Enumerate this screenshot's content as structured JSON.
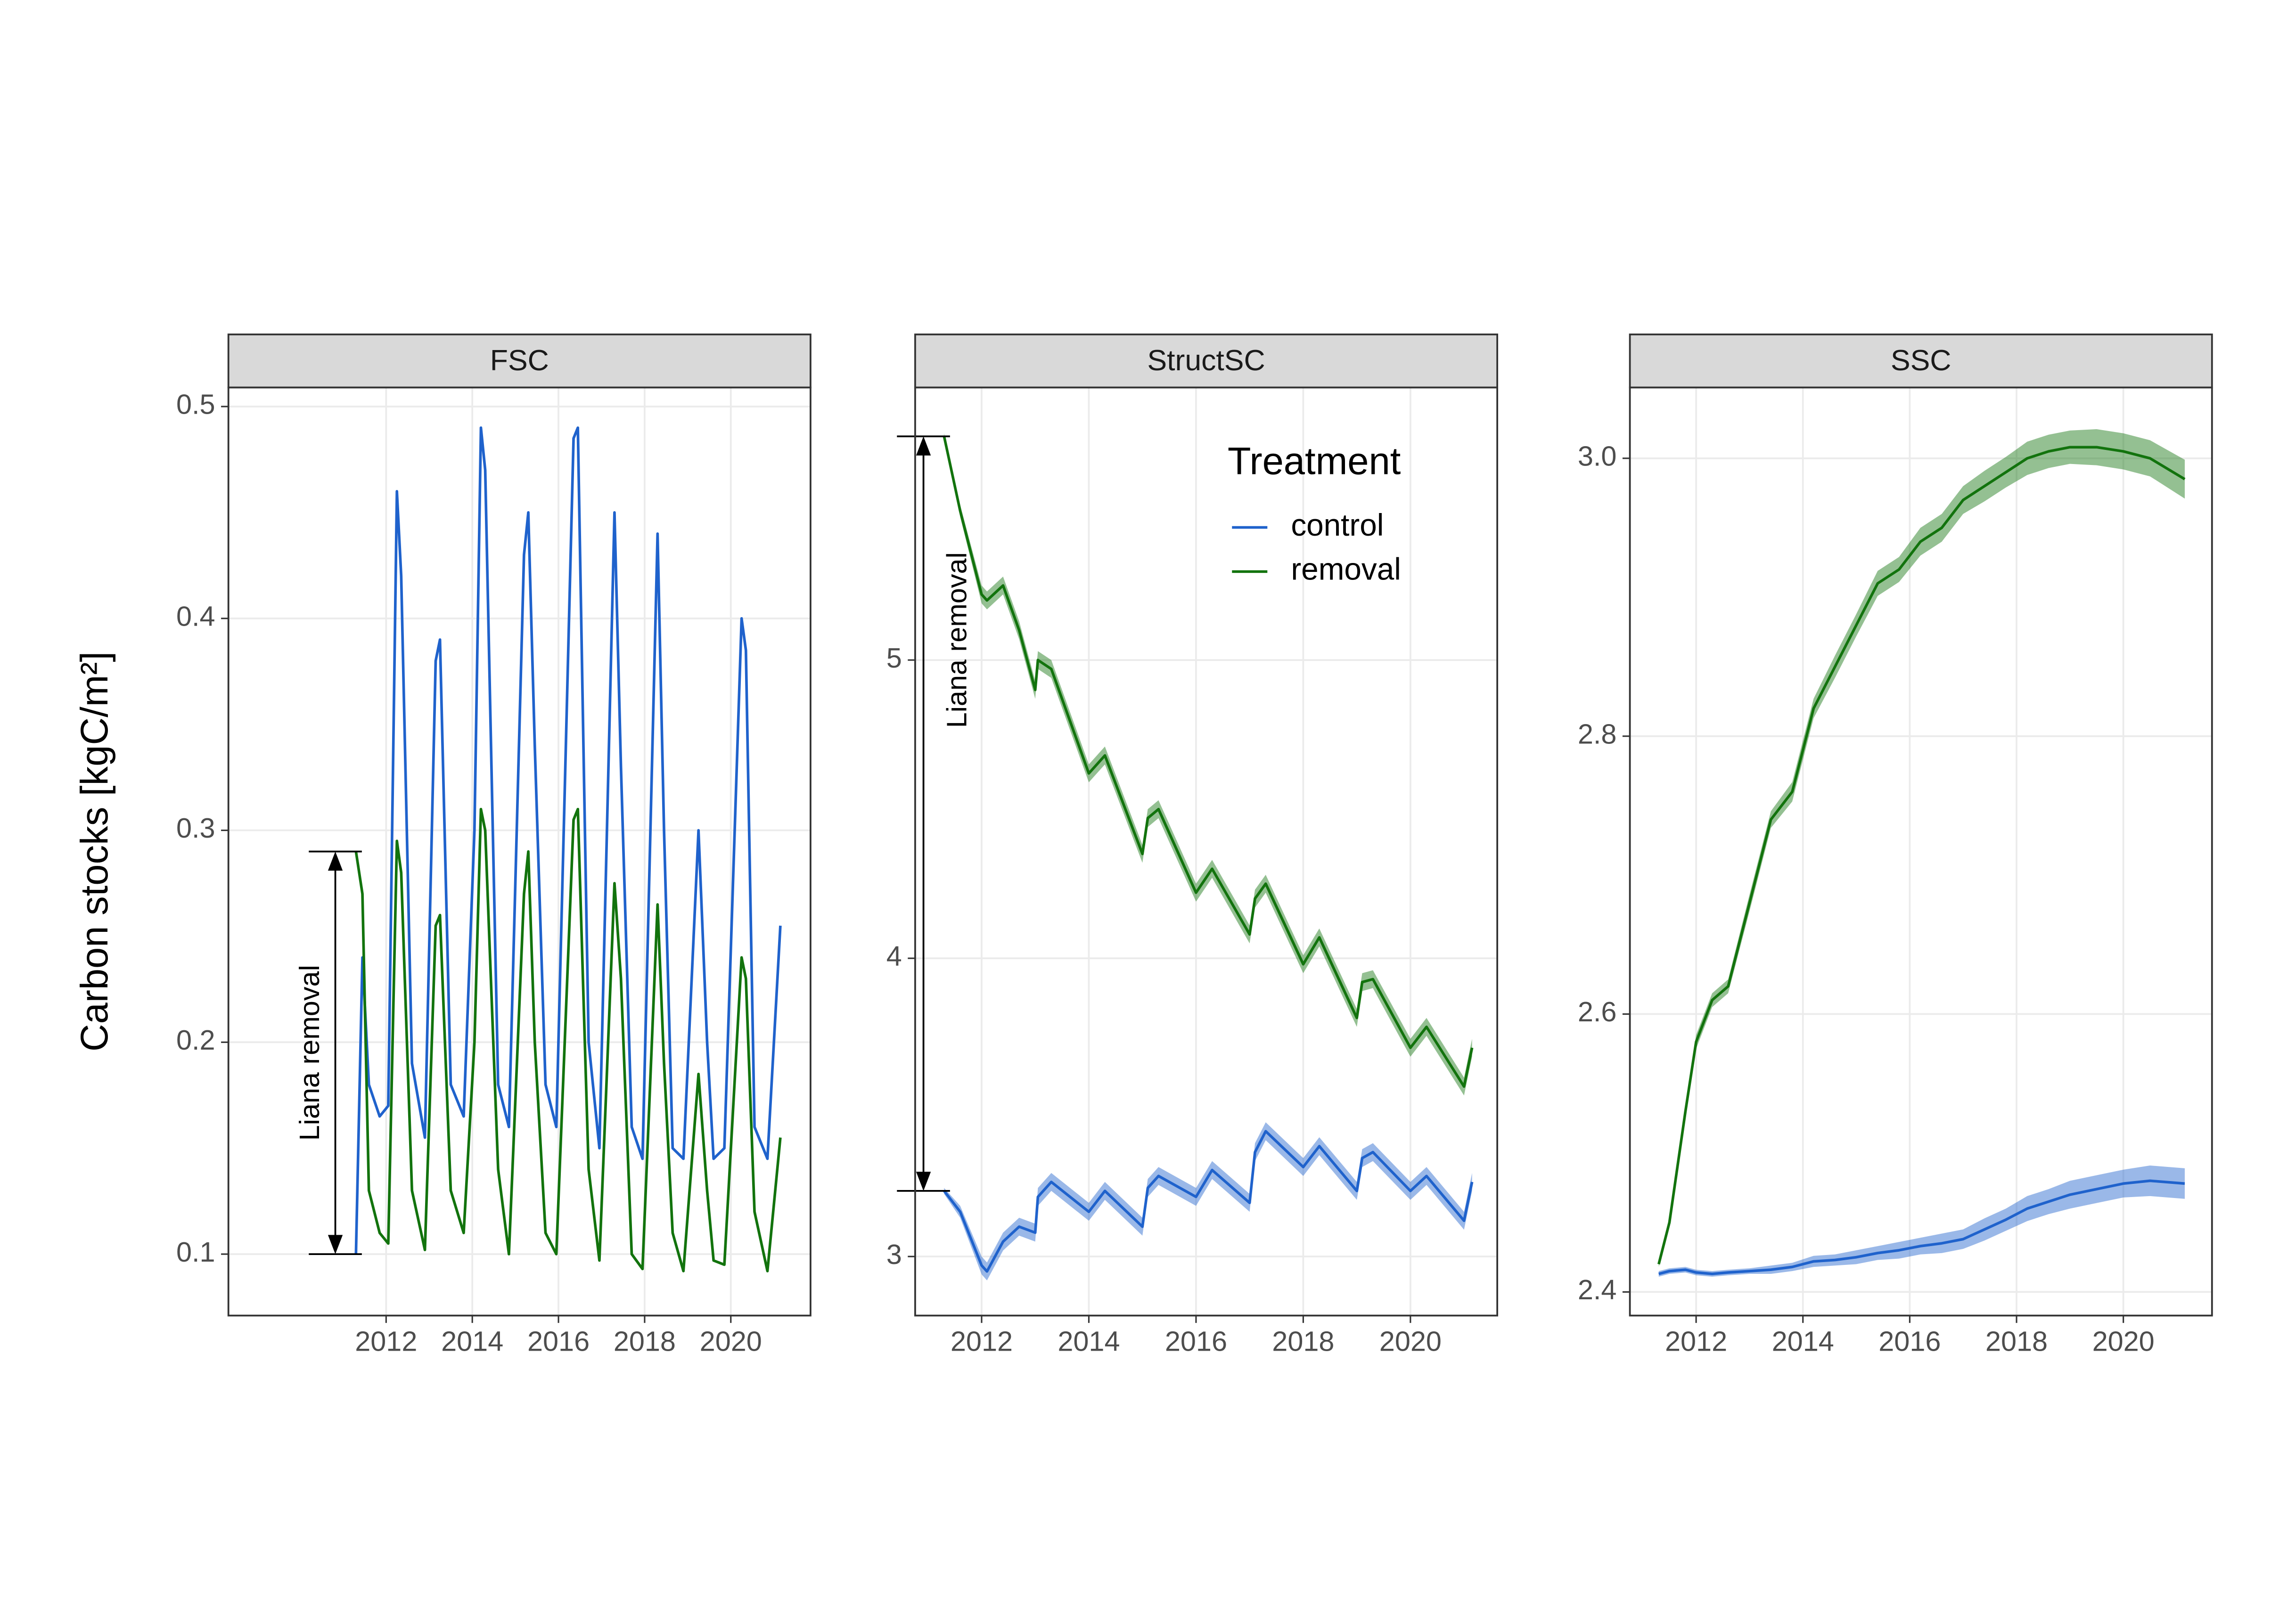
{
  "chart_data": [
    {
      "type": "line",
      "title": "FSC",
      "y_label": "Carbon stocks [kgC/m²]",
      "annotation": "Liana removal",
      "xlim": [
        2008.34,
        2021.85
      ],
      "xticks": [
        2012,
        2014,
        2016,
        2018,
        2020
      ],
      "ylim": [
        0.071,
        0.509
      ],
      "yticks": [
        0.1,
        0.2,
        0.3,
        0.4,
        0.5
      ],
      "grid": true,
      "x": [
        2011.3,
        2011.45,
        2011.6,
        2011.85,
        2012.05,
        2012.25,
        2012.35,
        2012.6,
        2012.9,
        2013.15,
        2013.25,
        2013.5,
        2013.8,
        2014.05,
        2014.2,
        2014.3,
        2014.6,
        2014.85,
        2015.2,
        2015.3,
        2015.45,
        2015.7,
        2015.95,
        2016.35,
        2016.45,
        2016.7,
        2016.95,
        2017.3,
        2017.45,
        2017.7,
        2017.95,
        2018.3,
        2018.45,
        2018.65,
        2018.9,
        2019.25,
        2019.45,
        2019.6,
        2019.85,
        2020.25,
        2020.35,
        2020.55,
        2020.85,
        2021.15
      ],
      "series": [
        {
          "color": "#1f62cc",
          "values": [
            0.1,
            0.24,
            0.18,
            0.165,
            0.17,
            0.46,
            0.42,
            0.19,
            0.155,
            0.38,
            0.39,
            0.18,
            0.165,
            0.3,
            0.49,
            0.47,
            0.18,
            0.16,
            0.43,
            0.45,
            0.34,
            0.18,
            0.16,
            0.485,
            0.49,
            0.2,
            0.15,
            0.45,
            0.33,
            0.16,
            0.145,
            0.44,
            0.3,
            0.15,
            0.145,
            0.3,
            0.2,
            0.145,
            0.15,
            0.4,
            0.385,
            0.16,
            0.145,
            0.255
          ]
        },
        {
          "color": "#12730d",
          "values": [
            0.29,
            0.27,
            0.13,
            0.11,
            0.105,
            0.295,
            0.28,
            0.13,
            0.102,
            0.255,
            0.26,
            0.13,
            0.11,
            0.2,
            0.31,
            0.3,
            0.14,
            0.1,
            0.27,
            0.29,
            0.2,
            0.11,
            0.1,
            0.305,
            0.31,
            0.14,
            0.097,
            0.275,
            0.23,
            0.1,
            0.093,
            0.265,
            0.19,
            0.11,
            0.092,
            0.185,
            0.13,
            0.097,
            0.095,
            0.24,
            0.23,
            0.12,
            0.092,
            0.155
          ]
        }
      ]
    },
    {
      "type": "line",
      "title": "StructSC",
      "annotation": "Liana removal",
      "legend_title": "Treatment",
      "legend": "top-right",
      "xlim": [
        2010.76,
        2021.62
      ],
      "xticks": [
        2012,
        2014,
        2016,
        2018,
        2020
      ],
      "ylim": [
        2.802,
        5.914
      ],
      "yticks": [
        3,
        4,
        5
      ],
      "grid": true,
      "x": [
        2011.3,
        2011.6,
        2012.0,
        2012.1,
        2012.4,
        2012.7,
        2013.0,
        2013.05,
        2013.3,
        2014.0,
        2014.3,
        2015.0,
        2015.1,
        2015.3,
        2016.0,
        2016.3,
        2017.0,
        2017.1,
        2017.3,
        2018.0,
        2018.3,
        2019.0,
        2019.1,
        2019.3,
        2020.0,
        2020.3,
        2021.0,
        2021.15
      ],
      "series": [
        {
          "name": "control",
          "color": "#1f62cc",
          "values": [
            3.22,
            3.15,
            2.97,
            2.95,
            3.05,
            3.1,
            3.08,
            3.2,
            3.25,
            3.15,
            3.22,
            3.1,
            3.23,
            3.27,
            3.2,
            3.29,
            3.18,
            3.35,
            3.42,
            3.3,
            3.37,
            3.22,
            3.33,
            3.35,
            3.22,
            3.27,
            3.12,
            3.25
          ],
          "ci": [
            0.01,
            0.02,
            0.03,
            0.03,
            0.03,
            0.03,
            0.03,
            0.03,
            0.03,
            0.03,
            0.03,
            0.03,
            0.03,
            0.03,
            0.03,
            0.03,
            0.03,
            0.03,
            0.03,
            0.03,
            0.03,
            0.03,
            0.03,
            0.03,
            0.03,
            0.03,
            0.03,
            0.03
          ]
        },
        {
          "name": "removal",
          "color": "#12730d",
          "values": [
            5.75,
            5.5,
            5.22,
            5.2,
            5.25,
            5.1,
            4.9,
            5.0,
            4.97,
            4.62,
            4.68,
            4.35,
            4.47,
            4.5,
            4.22,
            4.3,
            4.08,
            4.2,
            4.25,
            3.98,
            4.07,
            3.8,
            3.92,
            3.93,
            3.7,
            3.77,
            3.57,
            3.7
          ],
          "ci": [
            0.01,
            0.02,
            0.03,
            0.03,
            0.03,
            0.03,
            0.03,
            0.03,
            0.03,
            0.03,
            0.03,
            0.03,
            0.03,
            0.03,
            0.03,
            0.03,
            0.03,
            0.03,
            0.03,
            0.03,
            0.03,
            0.03,
            0.03,
            0.03,
            0.03,
            0.03,
            0.03,
            0.03
          ]
        }
      ]
    },
    {
      "type": "line",
      "title": "SSC",
      "xlim": [
        2010.76,
        2021.66
      ],
      "xticks": [
        2012,
        2014,
        2016,
        2018,
        2020
      ],
      "ylim": [
        2.383,
        3.051
      ],
      "yticks": [
        2.4,
        2.6,
        2.8,
        {
          "value": 3,
          "label": "3.0"
        }
      ],
      "grid": true,
      "x": [
        2011.3,
        2011.5,
        2011.8,
        2012.0,
        2012.3,
        2012.6,
        2013.0,
        2013.4,
        2013.8,
        2014.2,
        2014.6,
        2015.0,
        2015.4,
        2015.8,
        2016.2,
        2016.6,
        2017.0,
        2017.4,
        2017.8,
        2018.2,
        2018.6,
        2019.0,
        2019.5,
        2020.0,
        2020.5,
        2021.15
      ],
      "series": [
        {
          "color": "#1f62cc",
          "values": [
            2.413,
            2.415,
            2.416,
            2.414,
            2.413,
            2.414,
            2.415,
            2.416,
            2.418,
            2.422,
            2.423,
            2.425,
            2.428,
            2.43,
            2.433,
            2.435,
            2.438,
            2.445,
            2.452,
            2.46,
            2.465,
            2.47,
            2.474,
            2.478,
            2.48,
            2.478
          ],
          "ci": [
            0.002,
            0.002,
            0.002,
            0.002,
            0.002,
            0.002,
            0.002,
            0.003,
            0.003,
            0.004,
            0.004,
            0.005,
            0.005,
            0.006,
            0.006,
            0.007,
            0.007,
            0.008,
            0.008,
            0.009,
            0.009,
            0.01,
            0.01,
            0.01,
            0.011,
            0.011
          ]
        },
        {
          "color": "#12730d",
          "values": [
            2.42,
            2.45,
            2.53,
            2.58,
            2.61,
            2.62,
            2.68,
            2.74,
            2.76,
            2.82,
            2.85,
            2.88,
            2.91,
            2.92,
            2.94,
            2.95,
            2.97,
            2.98,
            2.99,
            3.0,
            3.005,
            3.008,
            3.008,
            3.005,
            3.0,
            2.985
          ],
          "ci": [
            0.002,
            0.003,
            0.004,
            0.005,
            0.005,
            0.005,
            0.006,
            0.006,
            0.007,
            0.007,
            0.008,
            0.008,
            0.009,
            0.009,
            0.01,
            0.01,
            0.01,
            0.011,
            0.011,
            0.012,
            0.012,
            0.012,
            0.013,
            0.013,
            0.013,
            0.014
          ]
        }
      ]
    }
  ]
}
